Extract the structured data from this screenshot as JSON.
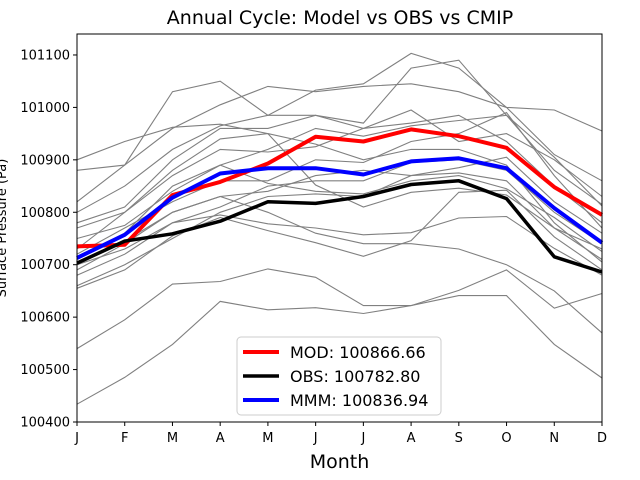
{
  "chart_data": {
    "type": "line",
    "title": "Annual Cycle: Model vs OBS vs CMIP",
    "xlabel": "Month",
    "ylabel": "Surface Pressure (Pa)",
    "categories": [
      "J",
      "F",
      "M",
      "A",
      "M",
      "J",
      "J",
      "A",
      "S",
      "O",
      "N",
      "D"
    ],
    "ylim": [
      100400,
      101140
    ],
    "yticks": [
      100400,
      100500,
      100600,
      100700,
      100800,
      100900,
      101000,
      101100
    ],
    "series": [
      {
        "name": "MOD: 100866.66",
        "color": "#ff0000",
        "width": 4,
        "values": [
          100735,
          100738,
          100833,
          100858,
          100893,
          100944,
          100935,
          100958,
          100945,
          100923,
          100848,
          100795
        ]
      },
      {
        "name": "OBS: 100782.80",
        "color": "#000000",
        "width": 3.5,
        "values": [
          100703,
          100745,
          100759,
          100783,
          100820,
          100817,
          100830,
          100853,
          100860,
          100826,
          100715,
          100686
        ]
      },
      {
        "name": "MMM: 100836.94",
        "color": "#0000ff",
        "width": 4,
        "values": [
          100713,
          100757,
          100828,
          100874,
          100884,
          100884,
          100872,
          100897,
          100903,
          100884,
          100808,
          100742
        ]
      }
    ],
    "cmip_models": [
      [
        100434,
        100485,
        100548,
        100630,
        100614,
        100618,
        100607,
        100622,
        100641,
        100641,
        100548,
        100484
      ],
      [
        100540,
        100595,
        100663,
        100668,
        100692,
        100676,
        100622,
        100622,
        100651,
        100690,
        100617,
        100645
      ],
      [
        100655,
        100690,
        100755,
        100790,
        100765,
        100742,
        100716,
        100746,
        100838,
        100842,
        100753,
        100690
      ],
      [
        100700,
        100730,
        100780,
        100795,
        100778,
        100770,
        100757,
        100761,
        100789,
        100792,
        100731,
        100680
      ],
      [
        100690,
        100740,
        100800,
        100830,
        100800,
        100760,
        100740,
        100740,
        100730,
        100700,
        100650,
        100570
      ],
      [
        100900,
        100935,
        100962,
        100968,
        100950,
        100852,
        100810,
        100838,
        100846,
        100833,
        100770,
        100710
      ],
      [
        100880,
        100890,
        101030,
        101050,
        100985,
        101033,
        101045,
        101103,
        101075,
        101000,
        100910,
        100860
      ],
      [
        100820,
        100890,
        100960,
        101005,
        101040,
        101030,
        101040,
        101045,
        101030,
        101000,
        100995,
        100955
      ],
      [
        100780,
        100810,
        100900,
        100960,
        100960,
        100985,
        100970,
        101075,
        101090,
        100985,
        100905,
        100812
      ],
      [
        100770,
        100800,
        100870,
        100920,
        100915,
        100925,
        100960,
        100995,
        100935,
        100950,
        100900,
        100830
      ],
      [
        100750,
        100775,
        100840,
        100890,
        100920,
        100960,
        100945,
        100965,
        100975,
        100985,
        100880,
        100815
      ],
      [
        100720,
        100770,
        100820,
        100860,
        100860,
        100900,
        100895,
        100935,
        100950,
        100990,
        100870,
        100770
      ],
      [
        100700,
        100745,
        100800,
        100830,
        100840,
        100870,
        100880,
        100870,
        100885,
        100905,
        100820,
        100760
      ],
      [
        100680,
        100720,
        100780,
        100810,
        100850,
        100860,
        100860,
        100895,
        100900,
        100880,
        100800,
        100740
      ],
      [
        100660,
        100700,
        100750,
        100800,
        100830,
        100835,
        100830,
        100870,
        100875,
        100860,
        100770,
        100730
      ],
      [
        100730,
        100800,
        100880,
        100940,
        100950,
        100930,
        100900,
        100920,
        100920,
        100890,
        100780,
        100705
      ],
      [
        100800,
        100850,
        100920,
        100965,
        100985,
        100985,
        100960,
        100970,
        100985,
        100935,
        100850,
        100780
      ],
      [
        100710,
        100760,
        100850,
        100890,
        100855,
        100840,
        100835,
        100860,
        100870,
        100845,
        100790,
        100725
      ]
    ],
    "legend": "lower-center",
    "grid": false
  }
}
